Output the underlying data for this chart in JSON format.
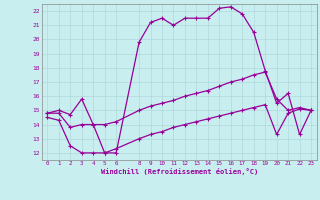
{
  "xlabel": "Windchill (Refroidissement éolien,°C)",
  "bg_color": "#c8eef0",
  "grid_color": "#b0d8da",
  "line_color": "#990099",
  "spine_color": "#888888",
  "xlim": [
    -0.5,
    23.5
  ],
  "ylim": [
    11.5,
    22.5
  ],
  "yticks": [
    12,
    13,
    14,
    15,
    16,
    17,
    18,
    19,
    20,
    21,
    22
  ],
  "xticks": [
    0,
    1,
    2,
    3,
    4,
    5,
    6,
    8,
    9,
    10,
    11,
    12,
    13,
    14,
    15,
    16,
    17,
    18,
    19,
    20,
    21,
    22,
    23
  ],
  "line1_x": [
    0,
    1,
    2,
    3,
    4,
    5,
    6,
    8,
    9,
    10,
    11,
    12,
    13,
    14,
    15,
    16,
    17,
    18,
    19,
    20,
    21,
    22,
    23
  ],
  "line1_y": [
    14.8,
    15.0,
    14.7,
    15.8,
    14.0,
    12.0,
    12.0,
    19.8,
    21.2,
    21.5,
    21.0,
    21.5,
    21.5,
    21.5,
    22.2,
    22.3,
    21.8,
    20.5,
    17.8,
    15.5,
    16.2,
    13.3,
    15.0
  ],
  "line2_x": [
    0,
    1,
    2,
    3,
    4,
    5,
    6,
    8,
    9,
    10,
    11,
    12,
    13,
    14,
    15,
    16,
    17,
    18,
    19,
    20,
    21,
    22,
    23
  ],
  "line2_y": [
    14.8,
    14.8,
    13.8,
    14.0,
    14.0,
    14.0,
    14.2,
    15.0,
    15.3,
    15.5,
    15.7,
    16.0,
    16.2,
    16.4,
    16.7,
    17.0,
    17.2,
    17.5,
    17.7,
    15.8,
    15.0,
    15.2,
    15.0
  ],
  "line3_x": [
    0,
    1,
    2,
    3,
    4,
    5,
    6,
    8,
    9,
    10,
    11,
    12,
    13,
    14,
    15,
    16,
    17,
    18,
    19,
    20,
    21,
    22,
    23
  ],
  "line3_y": [
    14.5,
    14.3,
    12.5,
    12.0,
    12.0,
    12.0,
    12.3,
    13.0,
    13.3,
    13.5,
    13.8,
    14.0,
    14.2,
    14.4,
    14.6,
    14.8,
    15.0,
    15.2,
    15.4,
    13.3,
    14.8,
    15.1,
    15.0
  ]
}
